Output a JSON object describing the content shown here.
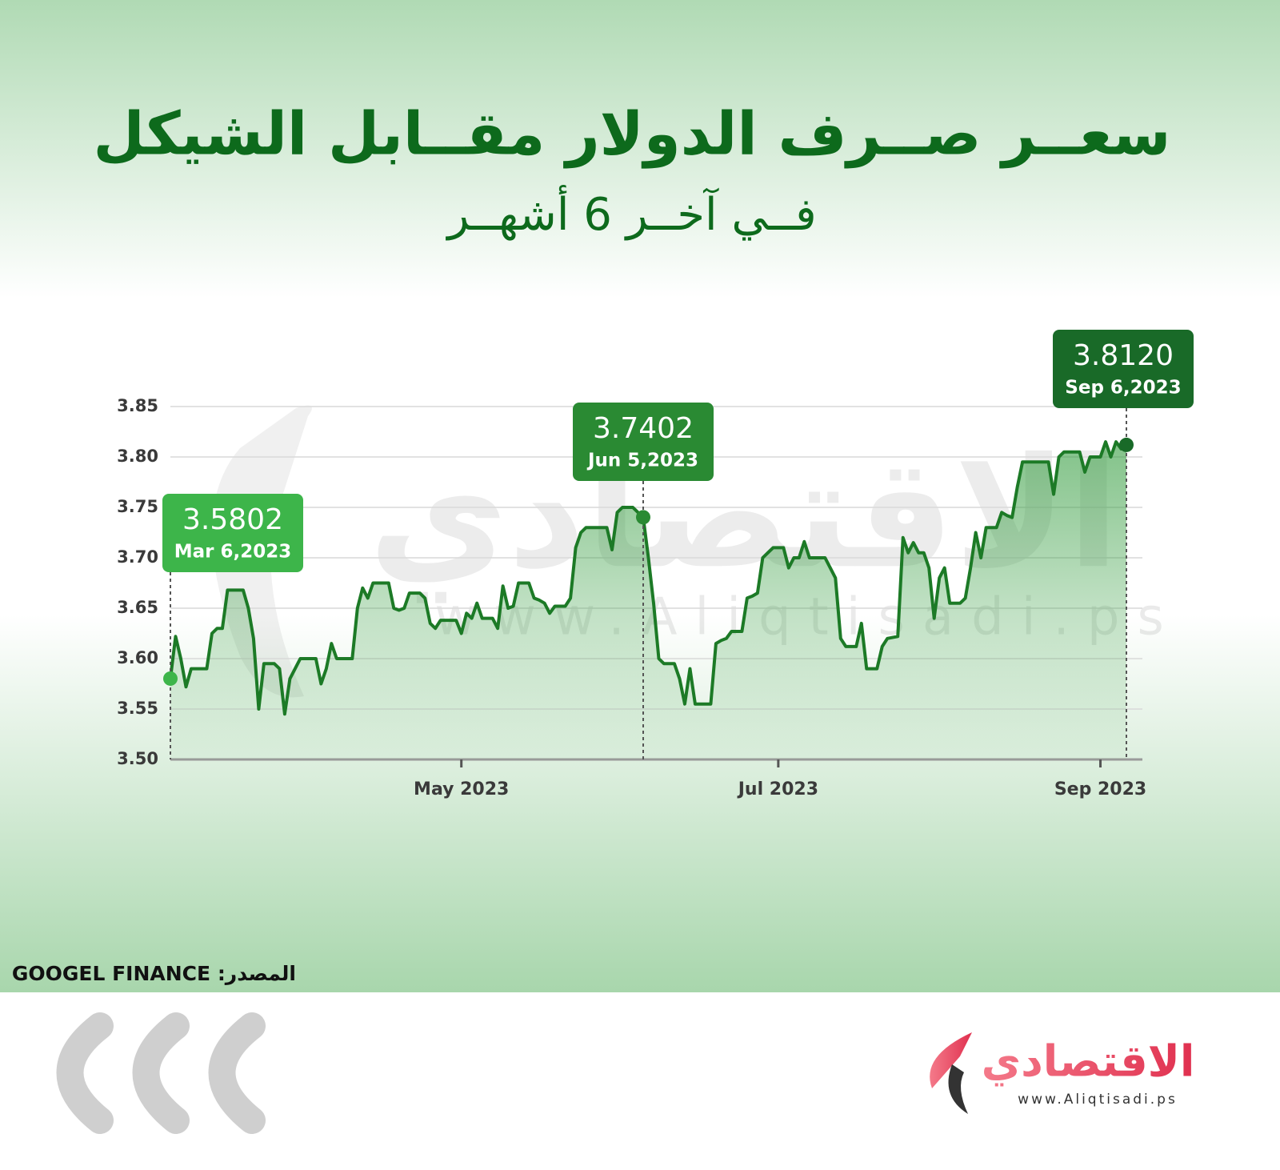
{
  "title": "سعــر صــرف الدولار مقــابل الشيكل",
  "subtitle": "فــي آخــر 6 أشهــر",
  "source": "المصدر: GOOGEL FINANCE",
  "branding": {
    "logo": "الاقتصادي",
    "website": "www.Aliqtisadi.ps",
    "watermark_logo": "الاقتصادي",
    "watermark_website": "www.Aliqtisadi.ps"
  },
  "chart_data": {
    "type": "line",
    "categories": [
      null,
      null,
      null,
      null,
      null,
      null,
      null,
      null,
      null,
      null,
      null,
      null,
      null,
      null,
      null,
      null,
      null,
      null,
      null,
      null,
      null,
      null,
      null,
      null,
      null,
      null,
      null,
      null,
      null,
      null,
      null,
      null,
      null,
      null,
      null,
      null,
      null,
      null,
      null,
      null,
      null,
      null,
      null,
      null,
      null,
      null,
      null,
      null,
      null,
      null,
      null,
      null,
      null,
      null,
      null,
      null,
      "May 2023",
      null,
      null,
      null,
      null,
      null,
      null,
      null,
      null,
      null,
      null,
      null,
      null,
      null,
      null,
      null,
      null,
      null,
      null,
      null,
      null,
      null,
      null,
      null,
      null,
      null,
      null,
      null,
      null,
      null,
      null,
      null,
      null,
      null,
      null,
      null,
      null,
      null,
      null,
      null,
      null,
      null,
      null,
      null,
      null,
      null,
      null,
      null,
      null,
      null,
      null,
      null,
      null,
      null,
      null,
      null,
      null,
      null,
      null,
      null,
      null,
      "Jul 2023",
      null,
      null,
      null,
      null,
      null,
      null,
      null,
      null,
      null,
      null,
      null,
      null,
      null,
      null,
      null,
      null,
      null,
      null,
      null,
      null,
      null,
      null,
      null,
      null,
      null,
      null,
      null,
      null,
      null,
      null,
      null,
      null,
      null,
      null,
      null,
      null,
      null,
      null,
      null,
      null,
      null,
      null,
      null,
      null,
      null,
      null,
      null,
      null,
      null,
      null,
      null,
      null,
      null,
      null,
      null,
      null,
      null,
      null,
      null,
      null,
      null,
      "Sep 2023",
      null,
      null,
      null,
      null,
      null
    ],
    "series": [
      {
        "color": "#1c7a26",
        "values": [
          3.5802,
          3.622,
          3.6,
          3.572,
          3.59,
          3.59,
          3.59,
          3.59,
          3.625,
          3.63,
          3.63,
          3.668,
          3.668,
          3.668,
          3.668,
          3.65,
          3.62,
          3.55,
          3.595,
          3.595,
          3.595,
          3.59,
          3.545,
          3.58,
          3.59,
          3.6,
          3.6,
          3.6,
          3.6,
          3.575,
          3.59,
          3.615,
          3.6,
          3.6,
          3.6,
          3.6,
          3.65,
          3.67,
          3.66,
          3.675,
          3.675,
          3.675,
          3.675,
          3.65,
          3.648,
          3.65,
          3.665,
          3.665,
          3.665,
          3.66,
          3.635,
          3.63,
          3.638,
          3.638,
          3.638,
          3.638,
          3.625,
          3.645,
          3.64,
          3.655,
          3.64,
          3.64,
          3.64,
          3.63,
          3.672,
          3.65,
          3.652,
          3.675,
          3.675,
          3.675,
          3.66,
          3.658,
          3.655,
          3.645,
          3.652,
          3.652,
          3.652,
          3.66,
          3.71,
          3.725,
          3.73,
          3.73,
          3.73,
          3.73,
          3.73,
          3.708,
          3.745,
          3.75,
          3.75,
          3.75,
          3.745,
          3.7402,
          3.7,
          3.655,
          3.6,
          3.595,
          3.595,
          3.595,
          3.58,
          3.555,
          3.59,
          3.555,
          3.555,
          3.555,
          3.555,
          3.615,
          3.618,
          3.62,
          3.627,
          3.627,
          3.627,
          3.66,
          3.662,
          3.665,
          3.7,
          3.705,
          3.71,
          3.71,
          3.71,
          3.69,
          3.7,
          3.7,
          3.716,
          3.7,
          3.7,
          3.7,
          3.7,
          3.69,
          3.68,
          3.62,
          3.612,
          3.612,
          3.612,
          3.635,
          3.59,
          3.59,
          3.59,
          3.612,
          3.62,
          3.621,
          3.622,
          3.72,
          3.705,
          3.715,
          3.705,
          3.705,
          3.69,
          3.64,
          3.68,
          3.69,
          3.655,
          3.655,
          3.655,
          3.66,
          3.69,
          3.725,
          3.7,
          3.73,
          3.73,
          3.73,
          3.745,
          3.742,
          3.74,
          3.77,
          3.795,
          3.795,
          3.795,
          3.795,
          3.795,
          3.795,
          3.763,
          3.8,
          3.805,
          3.805,
          3.805,
          3.805,
          3.785,
          3.8,
          3.8,
          3.8,
          3.815,
          3.8,
          3.815,
          3.808,
          3.812
        ]
      }
    ],
    "annotations": [
      {
        "label": "3.5802",
        "date": "Mar 6,2023",
        "color": "#3db54a"
      },
      null,
      null,
      null,
      null,
      null,
      null,
      null,
      null,
      null,
      null,
      null,
      null,
      null,
      null,
      null,
      null,
      null,
      null,
      null,
      null,
      null,
      null,
      null,
      null,
      null,
      null,
      null,
      null,
      null,
      null,
      null,
      null,
      null,
      null,
      null,
      null,
      null,
      null,
      null,
      null,
      null,
      null,
      null,
      null,
      null,
      null,
      null,
      null,
      null,
      null,
      null,
      null,
      null,
      null,
      null,
      null,
      null,
      null,
      null,
      null,
      null,
      null,
      null,
      null,
      null,
      null,
      null,
      null,
      null,
      null,
      null,
      null,
      null,
      null,
      null,
      null,
      null,
      null,
      null,
      null,
      null,
      null,
      null,
      null,
      null,
      null,
      null,
      null,
      null,
      null,
      {
        "label": "3.7402",
        "date": "Jun 5,2023",
        "color": "#2a8a33"
      },
      null,
      null,
      null,
      null,
      null,
      null,
      null,
      null,
      null,
      null,
      null,
      null,
      null,
      null,
      null,
      null,
      null,
      null,
      null,
      null,
      null,
      null,
      null,
      null,
      null,
      null,
      null,
      null,
      null,
      null,
      null,
      null,
      null,
      null,
      null,
      null,
      null,
      null,
      null,
      null,
      null,
      null,
      null,
      null,
      null,
      null,
      null,
      null,
      null,
      null,
      null,
      null,
      null,
      null,
      null,
      null,
      null,
      null,
      null,
      null,
      null,
      null,
      null,
      null,
      null,
      null,
      null,
      null,
      null,
      null,
      null,
      null,
      null,
      null,
      null,
      null,
      null,
      null,
      null,
      null,
      null,
      null,
      null,
      null,
      null,
      null,
      null,
      null,
      null,
      null,
      null,
      null,
      {
        "label": "3.8120",
        "date": "Sep 6,2023",
        "color": "#196a28"
      }
    ],
    "ylim": [
      3.5,
      3.85
    ],
    "yticks": [
      {
        "value": 3.5,
        "label": "3.50"
      },
      3.55,
      {
        "value": 3.6,
        "label": "3.60"
      },
      3.65,
      {
        "value": 3.7,
        "label": "3.70"
      },
      3.75,
      {
        "value": 3.8,
        "label": "3.80"
      },
      3.85
    ],
    "grid": true
  }
}
